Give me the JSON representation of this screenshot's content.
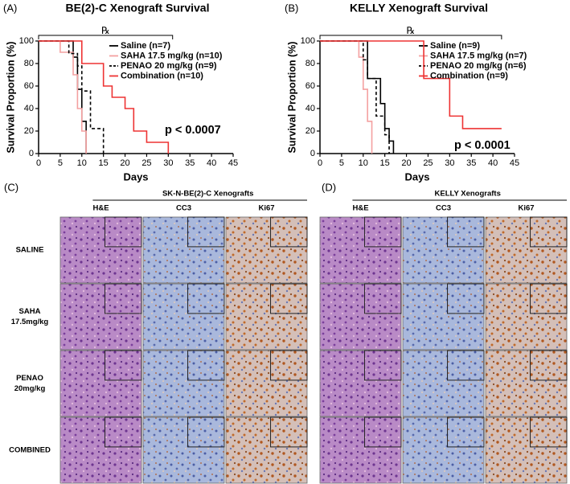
{
  "chart_data": [
    {
      "type": "survival",
      "panel_label": "(A)",
      "title": "BE(2)-C Xenograft Survival",
      "x_label": "Days",
      "y_label": "Survival Proportion (%)",
      "treatment_label": "℞",
      "treatment_span": [
        0,
        31
      ],
      "annotation": "p < 0.0007",
      "xlim": [
        0,
        45
      ],
      "xticks": [
        0,
        5,
        10,
        15,
        20,
        25,
        30,
        35,
        40,
        45
      ],
      "ylim": [
        0,
        100
      ],
      "yticks": [
        0,
        20,
        40,
        60,
        80,
        100
      ],
      "series": [
        {
          "name": "Saline (n=7)",
          "color": "#000000",
          "dash": false,
          "x": [
            0,
            8,
            9,
            10,
            11
          ],
          "values": [
            100,
            85.7,
            57.1,
            28.6,
            0
          ]
        },
        {
          "name": "SAHA 17.5 mg/kg (n=10)",
          "color": "#f4a0a0",
          "dash": false,
          "x": [
            0,
            5,
            8,
            9,
            10,
            11
          ],
          "values": [
            100,
            90,
            70,
            40,
            20,
            0
          ]
        },
        {
          "name": "PENAO 20 mg/kg (n=9)",
          "color": "#000000",
          "dash": true,
          "x": [
            0,
            7,
            9,
            10,
            12,
            15
          ],
          "values": [
            100,
            88.9,
            77.8,
            55.6,
            22.2,
            0
          ]
        },
        {
          "name": "Combination (n=10)",
          "color": "#ee3333",
          "dash": false,
          "x": [
            0,
            10,
            15,
            17,
            20,
            22,
            25,
            30
          ],
          "values": [
            100,
            80,
            60,
            50,
            40,
            20,
            10,
            0
          ]
        }
      ]
    },
    {
      "type": "survival",
      "panel_label": "(B)",
      "title": "KELLY Xenograft Survival",
      "x_label": "Days",
      "y_label": "Survival Proportion (%)",
      "treatment_label": "℞",
      "treatment_span": [
        0,
        42
      ],
      "annotation": "p < 0.0001",
      "xlim": [
        0,
        45
      ],
      "xticks": [
        0,
        5,
        10,
        15,
        20,
        25,
        30,
        35,
        40,
        45
      ],
      "ylim": [
        0,
        100
      ],
      "yticks": [
        0,
        20,
        40,
        60,
        80,
        100
      ],
      "series": [
        {
          "name": "Saline (n=9)",
          "color": "#000000",
          "dash": false,
          "x": [
            0,
            11,
            14,
            15,
            16,
            17
          ],
          "values": [
            100,
            66.7,
            44.4,
            22.2,
            11.1,
            0
          ]
        },
        {
          "name": "SAHA 17.5 mg/kg (n=7)",
          "color": "#f4a0a0",
          "dash": false,
          "x": [
            0,
            9,
            10,
            11,
            12
          ],
          "values": [
            100,
            85.7,
            57.1,
            28.6,
            0
          ]
        },
        {
          "name": "PENAO 20 mg/kg (n=6)",
          "color": "#000000",
          "dash": true,
          "x": [
            0,
            10,
            11,
            13,
            15,
            16
          ],
          "values": [
            100,
            83.3,
            66.7,
            33.3,
            16.7,
            0
          ]
        },
        {
          "name": "Combination (n=9)",
          "color": "#ee3333",
          "dash": false,
          "x": [
            0,
            24,
            30,
            33,
            42
          ],
          "values": [
            100,
            66.7,
            33.3,
            22.2,
            22.2
          ]
        }
      ]
    }
  ],
  "histology": [
    {
      "panel_label": "(C)",
      "title": "SK-N-BE(2)-C Xenografts",
      "columns": [
        "H&E",
        "CC3",
        "Ki67"
      ],
      "rows": [
        [
          "SALINE"
        ],
        [
          "SAHA",
          "17.5mg/kg"
        ],
        [
          "PENAO",
          "20mg/kg"
        ],
        [
          "COMBINED"
        ]
      ]
    },
    {
      "panel_label": "(D)",
      "title": "KELLY Xenografts",
      "columns": [
        "H&E",
        "CC3",
        "Ki67"
      ]
    }
  ]
}
